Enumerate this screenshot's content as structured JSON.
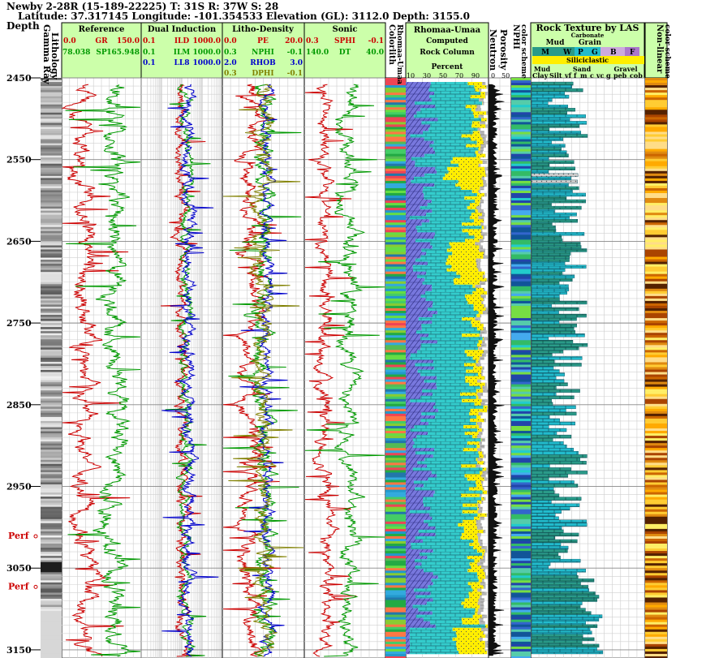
{
  "header": {
    "line1": "Newby 2-28R (15-189-22225) T: 31S R: 37W S: 28",
    "line2": "Latitude: 37.317145 Longitude: -101.354533 Elevation (GL): 3112.0 Depth: 3155.0"
  },
  "depth_label": "Depth",
  "perforations": [
    {
      "label": "Perf",
      "depth": 3010
    },
    {
      "label": "Perf",
      "depth": 3072
    }
  ],
  "colors": {
    "track_header_bg": "#ccffaa",
    "gr": "#cc0000",
    "sp": "#009900",
    "ild": "#cc0000",
    "ilm": "#009900",
    "ll8": "#0000cc",
    "pe": "#cc0000",
    "nphi": "#009900",
    "rhob": "#0000cc",
    "dphi": "#808000",
    "limestone": "#33cccc",
    "dolomite": "#7777dd",
    "sand": "#ffee00",
    "shale": "#aaaaaa",
    "perf": "#cc0000"
  },
  "chart_data": {
    "type": "line",
    "title": "",
    "depth_range": [
      2450,
      3155
    ],
    "y_axis_max_displayed": 3160,
    "depth_ticks": [
      2450,
      2550,
      2650,
      2750,
      2850,
      2950,
      3050,
      3150
    ],
    "tracks": [
      {
        "id": "gamma",
        "title": "Gamma Ray",
        "subtitle": "Lithology"
      },
      {
        "id": "reference",
        "title": "Reference",
        "curves": [
          {
            "name": "GR",
            "min": "0.0",
            "max": "150.0",
            "color": "#cc0000"
          },
          {
            "name": "SP",
            "min": "78.038",
            "max": "165.948",
            "color": "#009900"
          }
        ]
      },
      {
        "id": "induction",
        "title": "Dual Induction",
        "scale": "log",
        "curves": [
          {
            "name": "ILD",
            "min": "0.1",
            "max": "1000.0",
            "color": "#cc0000"
          },
          {
            "name": "ILM",
            "min": "0.1",
            "max": "1000.0",
            "color": "#009900"
          },
          {
            "name": "LL8",
            "min": "0.1",
            "max": "1000.0",
            "color": "#0000cc"
          }
        ]
      },
      {
        "id": "density",
        "title": "Litho-Density",
        "curves": [
          {
            "name": "PE",
            "min": "0.0",
            "max": "20.0",
            "color": "#cc0000"
          },
          {
            "name": "NPHI",
            "min": "0.3",
            "max": "-0.1",
            "color": "#009900"
          },
          {
            "name": "RHOB",
            "min": "2.0",
            "max": "3.0",
            "color": "#0000cc"
          },
          {
            "name": "DPHI",
            "min": "0.3",
            "max": "-0.1",
            "color": "#808000"
          }
        ]
      },
      {
        "id": "sonic",
        "title": "Sonic",
        "curves": [
          {
            "name": "SPHI",
            "min": "0.3",
            "max": "-0.1",
            "color": "#cc0000"
          },
          {
            "name": "DT",
            "min": "140.0",
            "max": "40.0",
            "color": "#009900"
          }
        ]
      },
      {
        "id": "colorlith",
        "title": "Colorlith",
        "subtitle": "Rhomaa-Umaa"
      },
      {
        "id": "rockcolumn",
        "title": "Rhomaa-Umaa",
        "lines": [
          "Computed",
          "Rock Column",
          "Percent"
        ],
        "ticks": [
          "10",
          "30",
          "50",
          "70",
          "90"
        ]
      },
      {
        "id": "neutron",
        "title": "Neutron",
        "subtitle": "Porosity",
        "ticks": [
          "0",
          "50"
        ]
      },
      {
        "id": "nphi",
        "title": "NPHI",
        "subtitle": "color scheme"
      },
      {
        "id": "texture",
        "title": "Rock Texture by LAS",
        "carbonate": "Carbonate",
        "carb_labels": [
          "M",
          "W",
          "P",
          "G",
          "B",
          "F"
        ],
        "mud": "Mud",
        "grain": "Grain",
        "siliciclastic": "Siliciclastic",
        "sil_mud": "Mud",
        "sil_sand": "Sand",
        "sil_gravel": "Gravel",
        "classes": [
          "Clay",
          "Silt",
          "vf",
          "f",
          "m",
          "c",
          "vc",
          "g",
          "peb",
          "cob"
        ]
      },
      {
        "id": "nonlinear",
        "title": "Non-linear",
        "subtitle": "color scheme"
      }
    ]
  }
}
